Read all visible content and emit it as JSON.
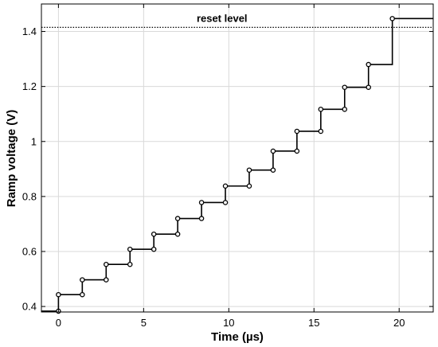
{
  "chart_data": {
    "type": "line",
    "title": "",
    "xlabel": "Time (µs)",
    "ylabel": "Ramp voltage (V)",
    "xlim": [
      -1,
      22
    ],
    "ylim": [
      0.38,
      1.5
    ],
    "grid": true,
    "x_ticks": [
      0,
      5,
      10,
      15,
      20
    ],
    "x_tick_labels": [
      "0",
      "5",
      "10",
      "15",
      "20"
    ],
    "y_ticks": [
      0.4,
      0.6,
      0.8,
      1.0,
      1.2,
      1.4
    ],
    "y_tick_labels": [
      "0.4",
      "0.6",
      "0.8",
      "1",
      "1.2",
      "1.4"
    ],
    "series": [
      {
        "style": "staircase",
        "color": "#000000",
        "step_times": [
          0,
          1.4,
          2.8,
          4.2,
          5.6,
          7.0,
          8.4,
          9.8,
          11.2,
          12.6,
          14.0,
          15.4,
          16.8,
          18.2,
          19.6
        ],
        "levels": [
          0.383,
          0.443,
          0.497,
          0.553,
          0.608,
          0.663,
          0.72,
          0.778,
          0.838,
          0.896,
          0.965,
          1.037,
          1.117,
          1.197,
          1.28,
          1.447
        ],
        "start_x": -1,
        "end_x": 22
      }
    ],
    "reference_lines": [
      {
        "y": 1.415,
        "label": "reset level",
        "style": "dotted"
      }
    ]
  }
}
